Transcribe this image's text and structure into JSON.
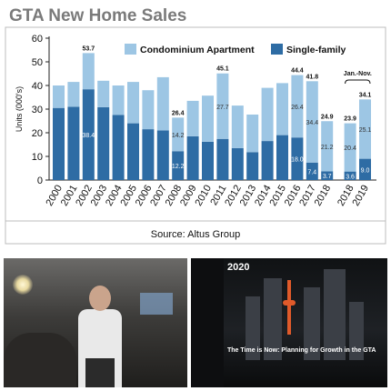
{
  "chart_data": {
    "type": "bar",
    "stacked": true,
    "title": "GTA New Home Sales",
    "ylabel": "Units (000's)",
    "xlabel": "",
    "ylim": [
      0,
      60
    ],
    "yticks": [
      "0",
      "10",
      "20",
      "30",
      "40",
      "50",
      "60"
    ],
    "grid": false,
    "legend_position": "top-right",
    "categories": [
      "2000",
      "2001",
      "2002",
      "2003",
      "2004",
      "2005",
      "2006",
      "2007",
      "2008",
      "2009",
      "2010",
      "2011",
      "2012",
      "2013",
      "2014",
      "2015",
      "2016",
      "2017",
      "2018",
      "2018",
      "2019"
    ],
    "series": [
      {
        "name": "Single-family",
        "color": "#2e6ca4",
        "values": [
          30.5,
          31.0,
          38.4,
          30.8,
          27.5,
          24.0,
          21.5,
          21.0,
          12.2,
          18.5,
          16.2,
          17.4,
          13.5,
          11.8,
          16.5,
          19.0,
          18.0,
          7.4,
          3.7,
          3.6,
          9.0
        ]
      },
      {
        "name": "Condominium Apartment",
        "color": "#9dc6e4",
        "values": [
          9.5,
          10.5,
          15.3,
          11.2,
          12.5,
          17.5,
          16.5,
          22.5,
          14.2,
          15.0,
          19.5,
          27.7,
          18.0,
          15.9,
          22.5,
          22.0,
          26.4,
          34.4,
          21.2,
          20.4,
          25.1
        ]
      }
    ],
    "top_labels": [
      "",
      "",
      "53.7",
      "",
      "",
      "",
      "",
      "",
      "26.4",
      "",
      "",
      "45.1",
      "",
      "",
      "",
      "",
      "44.4",
      "41.8",
      "24.9",
      "23.9",
      "34.1"
    ],
    "single_labels": [
      "",
      "",
      "38.4",
      "",
      "",
      "",
      "",
      "",
      "12.2",
      "",
      "",
      "",
      "",
      "",
      "",
      "",
      "18.0",
      "7.4",
      "3.7",
      "3.6",
      "9.0"
    ],
    "condo_labels": [
      "",
      "",
      "",
      "",
      "",
      "",
      "",
      "",
      "14.2",
      "",
      "",
      "27.7",
      "",
      "",
      "",
      "",
      "26.4",
      "34.4",
      "21.2",
      "20.4",
      "25.1"
    ],
    "subset_annotation": "Jan.-Nov.",
    "source": "Source: Altus Group"
  },
  "photos": {
    "left": {
      "description": "event"
    },
    "right": {
      "year_badge": "2020",
      "cover_text": "The Time is Now: Planning for Growth in the GTA"
    }
  }
}
